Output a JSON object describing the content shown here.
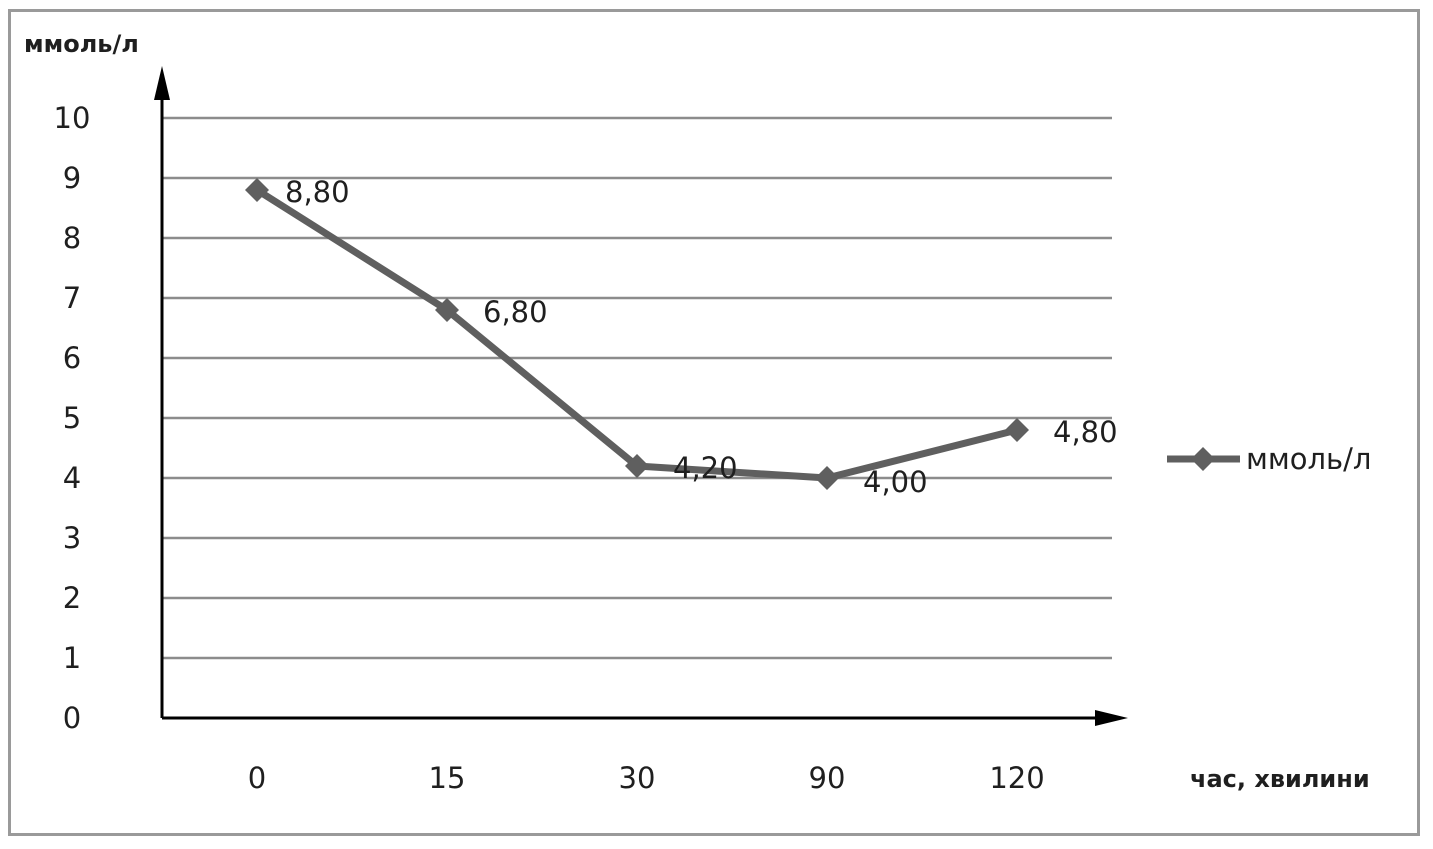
{
  "chart_data": {
    "type": "line",
    "title": "",
    "ylabel": "ммоль/л",
    "xlabel": "час, хвилини",
    "categories": [
      "0",
      "15",
      "30",
      "90",
      "120"
    ],
    "series": [
      {
        "name": "ммоль/л",
        "values": [
          8.8,
          6.8,
          4.2,
          4.0,
          4.8
        ],
        "labels": [
          "8,80",
          "6,80",
          "4,20",
          "4,00",
          "4,80"
        ],
        "color": "#5f5f5f"
      }
    ],
    "ylim": [
      0,
      10
    ],
    "yticks": [
      "0",
      "1",
      "2",
      "3",
      "4",
      "5",
      "6",
      "7",
      "8",
      "9",
      "10"
    ],
    "grid": true,
    "legend": "right",
    "marker": "diamond"
  }
}
